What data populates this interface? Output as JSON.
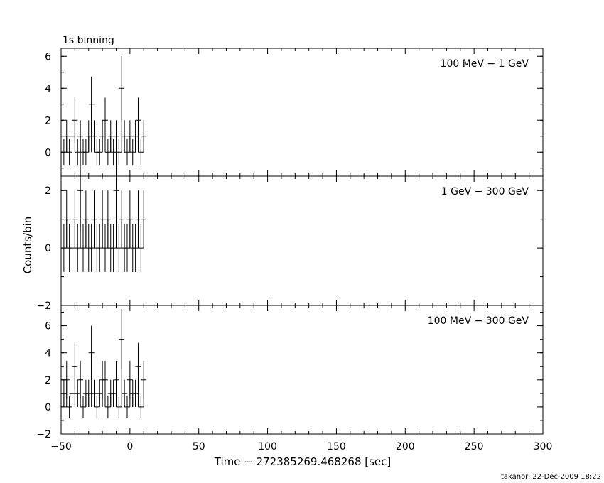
{
  "header_label": "1s binning",
  "footer": "takanori 22-Dec-2009 18:22",
  "chart_data": [
    {
      "type": "line",
      "series": [
        {
          "name": "100 MeV − 1 GeV",
          "values": [
            0,
            1,
            0,
            1,
            2,
            0,
            1,
            0,
            0,
            1,
            3,
            1,
            0,
            0,
            1,
            2,
            0,
            1,
            0,
            1,
            0,
            4,
            1,
            0,
            1,
            0,
            1,
            2,
            0,
            1
          ]
        }
      ],
      "x": [
        -48,
        -46,
        -44,
        -42,
        -40,
        -38,
        -36,
        -34,
        -32,
        -30,
        -28,
        -26,
        -24,
        -22,
        -20,
        -18,
        -16,
        -14,
        -12,
        -10,
        -8,
        -6,
        -4,
        -2,
        0,
        2,
        4,
        6,
        8,
        10
      ],
      "xlim": [
        -50,
        300
      ],
      "ylim": [
        -1.5,
        6.5
      ],
      "yticks": [
        0,
        2,
        4,
        6
      ],
      "ytick_labels": [
        "0",
        "2",
        "4",
        "6"
      ]
    },
    {
      "type": "line",
      "series": [
        {
          "name": "1 GeV − 300 GeV",
          "values": [
            0,
            1,
            0,
            0,
            1,
            0,
            2,
            0,
            1,
            0,
            0,
            1,
            0,
            0,
            1,
            0,
            1,
            0,
            0,
            2,
            0,
            1,
            0,
            0,
            1,
            0,
            0,
            1,
            0,
            1
          ]
        }
      ],
      "x": [
        -48,
        -46,
        -44,
        -42,
        -40,
        -38,
        -36,
        -34,
        -32,
        -30,
        -28,
        -26,
        -24,
        -22,
        -20,
        -18,
        -16,
        -14,
        -12,
        -10,
        -8,
        -6,
        -4,
        -2,
        0,
        2,
        4,
        6,
        8,
        10
      ],
      "xlim": [
        -50,
        300
      ],
      "ylim": [
        -2,
        2.5
      ],
      "yticks": [
        -2,
        0,
        2
      ],
      "ytick_labels": [
        "−2",
        "0",
        "2"
      ]
    },
    {
      "type": "line",
      "series": [
        {
          "name": "100 MeV − 300 GeV",
          "values": [
            1,
            2,
            0,
            1,
            3,
            1,
            2,
            0,
            1,
            1,
            4,
            1,
            0,
            1,
            2,
            2,
            0,
            1,
            1,
            2,
            0,
            5,
            1,
            0,
            2,
            1,
            1,
            3,
            0,
            2
          ]
        }
      ],
      "x": [
        -48,
        -46,
        -44,
        -42,
        -40,
        -38,
        -36,
        -34,
        -32,
        -30,
        -28,
        -26,
        -24,
        -22,
        -20,
        -18,
        -16,
        -14,
        -12,
        -10,
        -8,
        -6,
        -4,
        -2,
        0,
        2,
        4,
        6,
        8,
        10
      ],
      "xlim": [
        -50,
        300
      ],
      "ylim": [
        -2,
        7.5
      ],
      "yticks": [
        -2,
        0,
        2,
        4,
        6
      ],
      "ytick_labels": [
        "−2",
        "0",
        "2",
        "4",
        "6"
      ],
      "xticks": [
        -50,
        0,
        50,
        100,
        150,
        200,
        250,
        300
      ],
      "xtick_labels": [
        "−50",
        "0",
        "50",
        "100",
        "150",
        "200",
        "250",
        "300"
      ],
      "xlabel": "Time − 272385269.468268 [sec]"
    }
  ],
  "ylabel": "Counts/bin",
  "panel_labels": [
    "100 MeV − 1 GeV",
    "1 GeV − 300 GeV",
    "100 MeV − 300 GeV"
  ],
  "panel1_y_bottom_label": "−2"
}
